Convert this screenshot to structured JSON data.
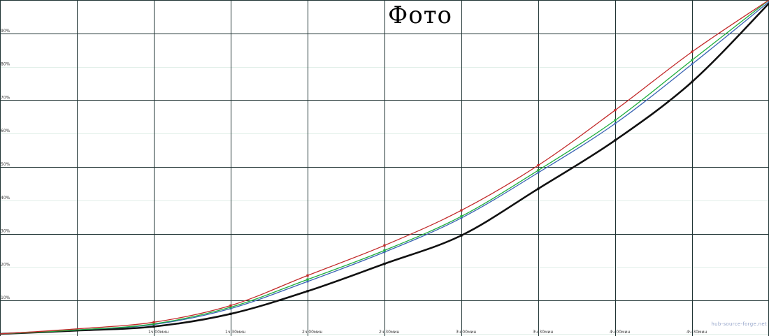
{
  "title": "Фото",
  "watermark": "hub-source-forge.net",
  "colors": {
    "background": "#ffffff",
    "grid_dark": "#1f3333",
    "grid_faint": "#e2efe9",
    "axis_label": "#3a3a3a",
    "title_color": "#000000",
    "watermark_color": "#93a3c9"
  },
  "chart_data": {
    "type": "line",
    "title": "Фото",
    "xlabel": "",
    "ylabel": "",
    "xlim_minutes": [
      0,
      300
    ],
    "ylim": [
      0,
      100
    ],
    "grid": true,
    "legend": false,
    "x_minutes": [
      0,
      30,
      60,
      90,
      120,
      150,
      180,
      210,
      240,
      270,
      300
    ],
    "x_tick_minutes": [
      60,
      90,
      120,
      150,
      180,
      210,
      240,
      270
    ],
    "x_tick_labels": [
      "1ч 00мин",
      "1ч 30мин",
      "2ч 00мин",
      "2ч 30мин",
      "3ч 00мин",
      "3ч 30мин",
      "4ч 00мин",
      "4ч 30мин"
    ],
    "y_tick_percents": [
      90,
      80,
      70,
      60,
      50,
      40,
      30,
      20,
      10
    ],
    "y_tick_suffix": "%",
    "series": [
      {
        "name": "black",
        "color": "#111111",
        "width": 2.6,
        "marker": 3.2,
        "values": [
          0,
          1.0,
          2.2,
          6.0,
          12.8,
          21.0,
          29.5,
          43.5,
          58.0,
          75.5,
          99.0
        ]
      },
      {
        "name": "blue",
        "color": "#3a64b4",
        "width": 1.3,
        "marker": 2.8,
        "values": [
          0,
          1.2,
          2.8,
          7.6,
          15.7,
          24.5,
          34.7,
          48.3,
          63.0,
          80.8,
          99.5
        ]
      },
      {
        "name": "green",
        "color": "#1fae3c",
        "width": 1.3,
        "marker": 3.2,
        "values": [
          0,
          1.2,
          3.0,
          8.0,
          16.3,
          25.0,
          35.2,
          49.0,
          64.0,
          82.0,
          100
        ]
      },
      {
        "name": "red",
        "color": "#c22a2a",
        "width": 1.3,
        "marker": 3.2,
        "values": [
          0,
          1.5,
          3.5,
          8.5,
          17.5,
          26.5,
          37.0,
          50.5,
          67.0,
          84.5,
          100
        ]
      }
    ]
  }
}
